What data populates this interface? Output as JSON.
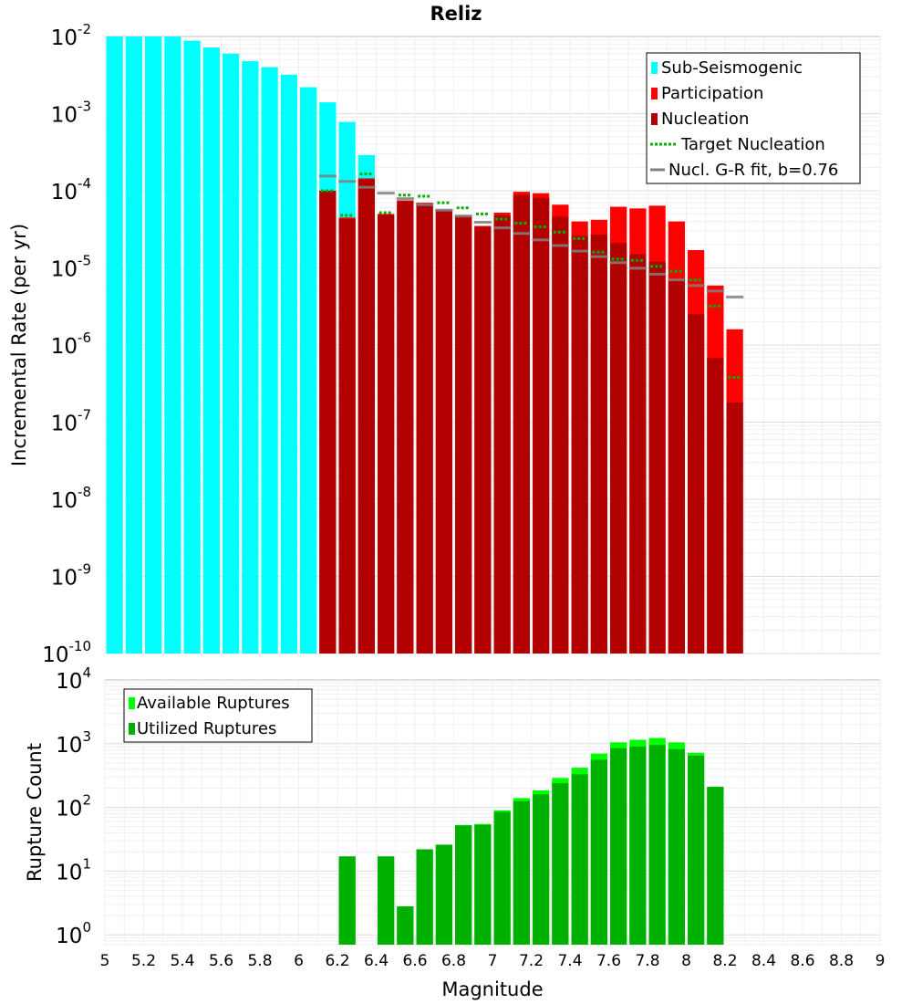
{
  "chart_data": [
    {
      "type": "bar",
      "title": "Reliz",
      "ylabel": "Incremental Rate (per yr)",
      "yscale": "log",
      "ylim": [
        1e-10,
        0.01
      ],
      "xlim": [
        5,
        9
      ],
      "grid": true,
      "legend_position": "top-right",
      "ytick_labels": [
        {
          "base": "10",
          "exp": "-10"
        },
        {
          "base": "10",
          "exp": "-9"
        },
        {
          "base": "10",
          "exp": "-8"
        },
        {
          "base": "10",
          "exp": "-7"
        },
        {
          "base": "10",
          "exp": "-6"
        },
        {
          "base": "10",
          "exp": "-5"
        },
        {
          "base": "10",
          "exp": "-4"
        },
        {
          "base": "10",
          "exp": "-3"
        },
        {
          "base": "10",
          "exp": "-2"
        }
      ],
      "legend": [
        {
          "label": "Sub-Seismogenic",
          "color": "#00ffff",
          "kind": "box"
        },
        {
          "label": "Participation",
          "color": "#ff0000",
          "kind": "box"
        },
        {
          "label": "Nucleation",
          "color": "#b20000",
          "kind": "box"
        },
        {
          "label": "Target Nucleation",
          "color": "#00b000",
          "kind": "dotted"
        },
        {
          "label": "Nucl. G-R fit, b=0.76",
          "color": "#808080",
          "kind": "line"
        }
      ],
      "series": [
        {
          "name": "Sub-Seismogenic",
          "color": "#00ffff",
          "x": [
            5.05,
            5.15,
            5.25,
            5.35,
            5.45,
            5.55,
            5.65,
            5.75,
            5.85,
            5.95,
            6.05,
            6.15,
            6.25,
            6.35
          ],
          "values": [
            0.01,
            0.01,
            0.01,
            0.01,
            0.0088,
            0.0072,
            0.006,
            0.0048,
            0.004,
            0.0032,
            0.0022,
            0.0014,
            0.00078,
            0.00029
          ]
        },
        {
          "name": "Participation",
          "color": "#ff0000",
          "x": [
            6.15,
            6.25,
            6.35,
            6.45,
            6.55,
            6.65,
            6.75,
            6.85,
            6.95,
            7.05,
            7.15,
            7.25,
            7.35,
            7.45,
            7.55,
            7.65,
            7.75,
            7.85,
            7.95,
            8.05,
            8.15,
            8.25
          ],
          "values": [
            0.0001,
            4.5e-05,
            0.000145,
            5e-05,
            7.5e-05,
            7e-05,
            5.7e-05,
            4.8e-05,
            3.5e-05,
            5.2e-05,
            9.7e-05,
            9.3e-05,
            6.6e-05,
            4e-05,
            4.2e-05,
            6.2e-05,
            5.9e-05,
            6.4e-05,
            4e-05,
            1.7e-05,
            5.9e-06,
            1.6e-06
          ]
        },
        {
          "name": "Nucleation",
          "color": "#b20000",
          "x": [
            6.15,
            6.25,
            6.35,
            6.45,
            6.55,
            6.65,
            6.75,
            6.85,
            6.95,
            7.05,
            7.15,
            7.25,
            7.35,
            7.45,
            7.55,
            7.65,
            7.75,
            7.85,
            7.95,
            8.05,
            8.15,
            8.25
          ],
          "values": [
            0.0001,
            4.3e-05,
            0.00014,
            4.9e-05,
            7.3e-05,
            6.8e-05,
            5.6e-05,
            4.7e-05,
            3.4e-05,
            4.8e-05,
            8.8e-05,
            8.1e-05,
            4.6e-05,
            2.6e-05,
            2.7e-05,
            2.1e-05,
            1.5e-05,
            1.2e-05,
            6.9e-06,
            2.5e-06,
            6.8e-07,
            1.8e-07
          ]
        },
        {
          "name": "Target Nucleation",
          "color": "#00b000",
          "x": [
            6.15,
            6.25,
            6.35,
            6.45,
            6.55,
            6.65,
            6.75,
            6.85,
            6.95,
            7.05,
            7.15,
            7.25,
            7.35,
            7.45,
            7.55,
            7.65,
            7.75,
            7.85,
            7.95,
            8.05,
            8.15,
            8.25
          ],
          "values": [
            0.0001,
            4.8e-05,
            0.000165,
            5.2e-05,
            8.8e-05,
            8.5e-05,
            7e-05,
            6e-05,
            5e-05,
            4.3e-05,
            3.8e-05,
            3.4e-05,
            2.9e-05,
            2.4e-05,
            1.6e-05,
            1.3e-05,
            1.25e-05,
            1.05e-05,
            9e-06,
            7e-06,
            3.2e-06,
            3.8e-07
          ]
        },
        {
          "name": "Nucl. G-R fit, b=0.76",
          "color": "#808080",
          "x": [
            6.15,
            6.25,
            6.35,
            6.45,
            6.55,
            6.65,
            6.75,
            6.85,
            6.95,
            7.05,
            7.15,
            7.25,
            7.35,
            7.45,
            7.55,
            7.65,
            7.75,
            7.85,
            7.95,
            8.05,
            8.15,
            8.25
          ],
          "values": [
            0.000155,
            0.000132,
            0.000111,
            9.3e-05,
            7.9e-05,
            6.6e-05,
            5.6e-05,
            4.7e-05,
            3.9e-05,
            3.3e-05,
            2.8e-05,
            2.3e-05,
            1.95e-05,
            1.65e-05,
            1.4e-05,
            1.17e-05,
            9.9e-06,
            8.3e-06,
            7e-06,
            5.9e-06,
            5e-06,
            4.2e-06
          ]
        }
      ]
    },
    {
      "type": "bar",
      "title": "",
      "xlabel": "Magnitude",
      "ylabel": "Rupture Count",
      "yscale": "log",
      "ylim": [
        0.7,
        10000
      ],
      "xlim": [
        5,
        9
      ],
      "grid": true,
      "legend_position": "top-left",
      "xtick_labels": [
        "5",
        "5.2",
        "5.4",
        "5.6",
        "5.8",
        "6",
        "6.2",
        "6.4",
        "6.6",
        "6.8",
        "7",
        "7.2",
        "7.4",
        "7.6",
        "7.8",
        "8",
        "8.2",
        "8.4",
        "8.6",
        "8.8",
        "9"
      ],
      "ytick_labels": [
        {
          "base": "10",
          "exp": "0"
        },
        {
          "base": "10",
          "exp": "1"
        },
        {
          "base": "10",
          "exp": "2"
        },
        {
          "base": "10",
          "exp": "3"
        },
        {
          "base": "10",
          "exp": "4"
        }
      ],
      "legend": [
        {
          "label": "Available Ruptures",
          "color": "#00ff00",
          "kind": "box"
        },
        {
          "label": "Utilized Ruptures",
          "color": "#00b000",
          "kind": "box"
        }
      ],
      "series": [
        {
          "name": "Available Ruptures",
          "color": "#00ff00",
          "x": [
            6.25,
            6.45,
            6.55,
            6.65,
            6.75,
            6.85,
            6.95,
            7.05,
            7.15,
            7.25,
            7.35,
            7.45,
            7.55,
            7.65,
            7.75,
            7.85,
            7.95,
            8.05,
            8.15
          ],
          "values": [
            17,
            17,
            2.8,
            22,
            26,
            53,
            55,
            90,
            140,
            185,
            290,
            420,
            700,
            1050,
            1150,
            1230,
            1050,
            720,
            210
          ]
        },
        {
          "name": "Utilized Ruptures",
          "color": "#00b000",
          "x": [
            6.25,
            6.45,
            6.55,
            6.65,
            6.75,
            6.85,
            6.95,
            7.05,
            7.15,
            7.25,
            7.35,
            7.45,
            7.55,
            7.65,
            7.75,
            7.85,
            7.95,
            8.05,
            8.15
          ],
          "values": [
            17,
            17,
            2.8,
            22,
            26,
            52,
            53,
            85,
            125,
            160,
            240,
            330,
            560,
            850,
            900,
            950,
            820,
            650,
            210
          ]
        }
      ]
    }
  ]
}
